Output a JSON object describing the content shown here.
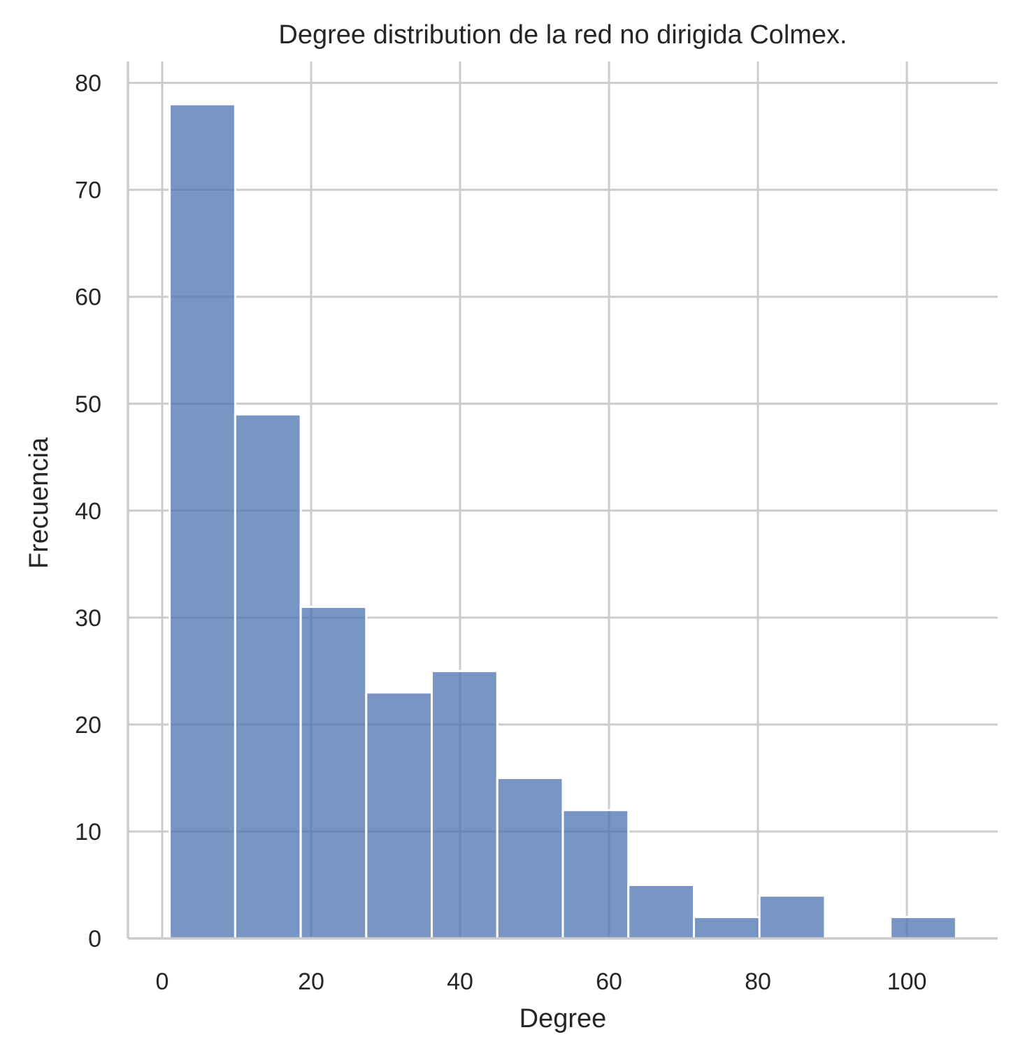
{
  "chart_data": {
    "type": "bar",
    "title": "Degree distribution de la red no dirigida Colmex.",
    "xlabel": "Degree",
    "ylabel": "Frecuencia",
    "bin_edges": [
      1.0,
      9.8,
      18.6,
      27.4,
      36.2,
      45.0,
      53.8,
      62.6,
      71.4,
      80.2,
      89.0,
      97.8,
      106.6
    ],
    "values": [
      78,
      49,
      31,
      23,
      25,
      15,
      12,
      5,
      2,
      4,
      0,
      2
    ],
    "xlim": [
      -4.6,
      112.2
    ],
    "ylim": [
      0,
      82
    ],
    "xticks": [
      0,
      20,
      40,
      60,
      80,
      100
    ],
    "yticks": [
      0,
      10,
      20,
      30,
      40,
      50,
      60,
      70,
      80
    ],
    "bar_color": "#4c72b0",
    "grid": true
  }
}
